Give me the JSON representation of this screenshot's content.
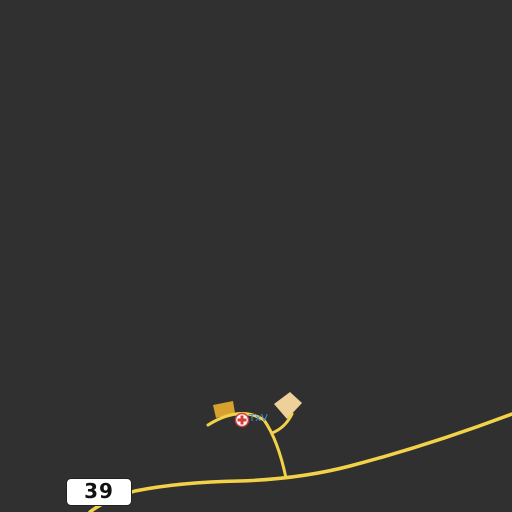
{
  "map": {
    "background_color": "#303030",
    "road_color": "#f3d24a",
    "building_colors": {
      "orange": "#d6a12f",
      "tan": "#efcf9a"
    }
  },
  "route_shield": {
    "label": "39",
    "icon": "route-shield-icon"
  },
  "poi": {
    "label": "TxV",
    "icon": "medical-cross-icon",
    "icon_color": "#d23c3c",
    "label_color": "#3d8fe0"
  }
}
